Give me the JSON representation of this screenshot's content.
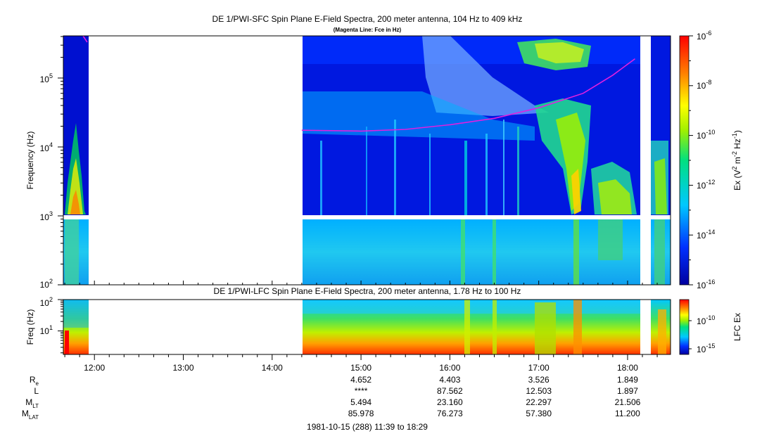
{
  "chart_data": [
    {
      "type": "heatmap",
      "title": "DE 1/PWI-SFC  Spin Plane E-Field Spectra, 200 meter antenna, 104 Hz to 409 kHz",
      "subtitle": "(Magenta Line: Fce in Hz)",
      "ylabel": "Frequency (Hz)",
      "yscale": "log",
      "ylim": [
        100,
        409000
      ],
      "yticks": [
        "10",
        "10",
        "10",
        "10"
      ],
      "ytick_exps": [
        "2",
        "3",
        "4",
        "5"
      ],
      "colorbar": {
        "label": "Ex (V",
        "label_sup1": "2",
        "label_mid": " m",
        "label_sup2": "-2",
        "label_mid2": " Hz",
        "label_sup3": "-1",
        "label_end": ")",
        "scale": "log",
        "range": [
          1e-16,
          1e-06
        ],
        "ticks": [
          "10",
          "10",
          "10",
          "10",
          "10",
          "10"
        ],
        "tick_exps": [
          "-6",
          "-8",
          "-10",
          "-12",
          "-14",
          "-16"
        ]
      },
      "data_gaps": [
        [
          "11:56",
          "14:20"
        ],
        [
          "18:06",
          "18:12"
        ]
      ],
      "fce_line": {
        "color": "#e020e0",
        "times": [
          "14:20",
          "15:00",
          "15:30",
          "16:00",
          "16:30",
          "17:00",
          "17:30",
          "17:50",
          "18:05"
        ],
        "values": [
          17500,
          17000,
          18000,
          21000,
          26000,
          37000,
          60000,
          110000,
          190000
        ]
      }
    },
    {
      "type": "heatmap",
      "title": "DE 1/PWI-LFC  Spin Plane E-Field Spectra, 200 meter antenna, 1.78 Hz to 100 Hz",
      "ylabel": "Freq (Hz)",
      "yscale": "log",
      "ylim": [
        1.78,
        100
      ],
      "yticks": [
        "10",
        "10"
      ],
      "ytick_exps": [
        "2",
        "1"
      ],
      "colorbar": {
        "label": "LFC Ex",
        "scale": "log",
        "ticks": [
          "10",
          "10"
        ],
        "tick_exps": [
          "-10",
          "-15"
        ]
      },
      "data_gaps": [
        [
          "11:56",
          "14:20"
        ],
        [
          "18:06",
          "18:12"
        ]
      ]
    }
  ],
  "time_axis": {
    "start": "11:39",
    "end": "18:29",
    "ticks": [
      "12:00",
      "13:00",
      "14:00",
      "15:00",
      "16:00",
      "17:00",
      "18:00"
    ]
  },
  "ephemeris": {
    "rows": [
      {
        "label": "R",
        "sub": "e",
        "values": [
          "4.652",
          "4.403",
          "3.526",
          "1.849"
        ]
      },
      {
        "label": "L",
        "sub": "",
        "values": [
          "****",
          "87.562",
          "12.503",
          "1.897"
        ]
      },
      {
        "label": "M",
        "sub": "LT",
        "values": [
          "5.494",
          "23.160",
          "22.297",
          "21.506"
        ]
      },
      {
        "label": "M",
        "sub": "LAT",
        "values": [
          "85.978",
          "76.273",
          "57.380",
          "11.200"
        ]
      }
    ],
    "times": [
      "15:00",
      "16:00",
      "17:00",
      "18:00"
    ]
  },
  "footer": "1981-10-15 (288) 11:39 to 18:29"
}
